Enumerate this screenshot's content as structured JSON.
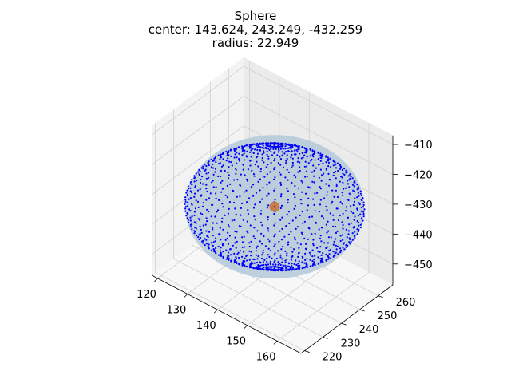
{
  "chart_data": {
    "type": "scatter",
    "projection": "3d",
    "title": "Sphere",
    "subtitle_lines": [
      "center: 143.624, 243.249, -432.259",
      "radius: 22.949"
    ],
    "center": [
      143.624,
      243.249,
      -432.259
    ],
    "radius": 22.949,
    "xlim": [
      118,
      168
    ],
    "ylim": [
      218,
      268
    ],
    "zlim": [
      -457,
      -407
    ],
    "x_ticks": [
      "120",
      "130",
      "140",
      "150",
      "160"
    ],
    "x_tick_values": [
      120,
      130,
      140,
      150,
      160
    ],
    "y_ticks": [
      "220",
      "230",
      "240",
      "250",
      "260"
    ],
    "y_tick_values": [
      220,
      230,
      240,
      250,
      260
    ],
    "z_ticks": [
      "−410",
      "−420",
      "−430",
      "−440",
      "−450"
    ],
    "z_tick_values": [
      -410,
      -420,
      -430,
      -440,
      -450
    ],
    "grid": true,
    "series": [
      {
        "role": "surface points",
        "color": "#0000ff",
        "marker": "dot"
      },
      {
        "role": "center",
        "color": "#c8743c",
        "marker": "circle"
      }
    ],
    "colors": {
      "surface_fill": "#b4c8d8",
      "points": "#0000ff",
      "center": "#c8743c",
      "pane": "#f2f2f2",
      "grid": "#d0d0d0"
    }
  }
}
